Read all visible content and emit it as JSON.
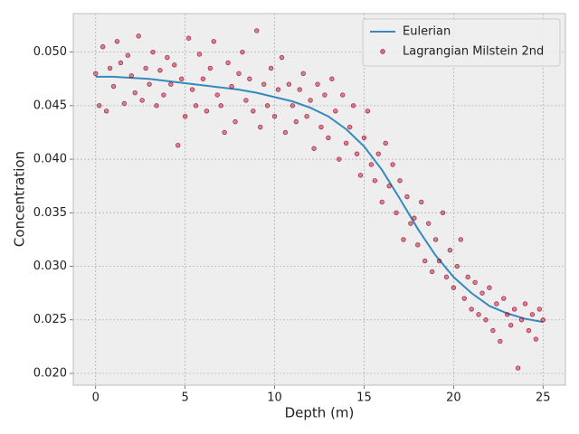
{
  "chart_data": {
    "type": "line",
    "xlabel": "Depth (m)",
    "ylabel": "Concentration",
    "xlim": [
      -1.25,
      26.25
    ],
    "ylim": [
      0.0189,
      0.0536
    ],
    "xticks": [
      0,
      5,
      10,
      15,
      20,
      25
    ],
    "yticks": [
      {
        "value": 0.02,
        "label": "0.020"
      },
      {
        "value": 0.025,
        "label": "0.025"
      },
      {
        "value": 0.03,
        "label": "0.030"
      },
      {
        "value": 0.035,
        "label": "0.035"
      },
      {
        "value": 0.04,
        "label": "0.040"
      },
      {
        "value": 0.045,
        "label": "0.045"
      },
      {
        "value": 0.05,
        "label": "0.050"
      }
    ],
    "grid": true,
    "legend": "upper right",
    "series": [
      {
        "name": "Eulerian",
        "type": "line",
        "color": "#348abd",
        "x": [
          0,
          1,
          2,
          3,
          4,
          5,
          6,
          7,
          8,
          9,
          10,
          11,
          12,
          13,
          14,
          15,
          16,
          17,
          18,
          19,
          20,
          21,
          22,
          23,
          24,
          25
        ],
        "values": [
          0.0477,
          0.0477,
          0.0476,
          0.0475,
          0.0473,
          0.0471,
          0.0469,
          0.0467,
          0.0465,
          0.0462,
          0.0458,
          0.0454,
          0.0448,
          0.044,
          0.0428,
          0.0412,
          0.039,
          0.0363,
          0.0335,
          0.031,
          0.029,
          0.0275,
          0.0263,
          0.0256,
          0.0251,
          0.0248
        ]
      },
      {
        "name": "Lagrangian Milstein 2nd",
        "type": "scatter",
        "color": "#a60628",
        "x": [
          0,
          0.2,
          0.4,
          0.6,
          0.8,
          1,
          1.2,
          1.4,
          1.6,
          1.8,
          2,
          2.2,
          2.4,
          2.6,
          2.8,
          3,
          3.2,
          3.4,
          3.6,
          3.8,
          4,
          4.2,
          4.4,
          4.6,
          4.8,
          5,
          5.2,
          5.4,
          5.6,
          5.8,
          6,
          6.2,
          6.4,
          6.6,
          6.8,
          7,
          7.2,
          7.4,
          7.6,
          7.8,
          8,
          8.2,
          8.4,
          8.6,
          8.8,
          9,
          9.2,
          9.4,
          9.6,
          9.8,
          10,
          10.2,
          10.4,
          10.6,
          10.8,
          11,
          11.2,
          11.4,
          11.6,
          11.8,
          12,
          12.2,
          12.4,
          12.6,
          12.8,
          13,
          13.2,
          13.4,
          13.6,
          13.8,
          14,
          14.2,
          14.4,
          14.6,
          14.8,
          15,
          15.2,
          15.4,
          15.6,
          15.8,
          16,
          16.2,
          16.4,
          16.6,
          16.8,
          17,
          17.2,
          17.4,
          17.6,
          17.8,
          18,
          18.2,
          18.4,
          18.6,
          18.8,
          19,
          19.2,
          19.4,
          19.6,
          19.8,
          20,
          20.2,
          20.4,
          20.6,
          20.8,
          21,
          21.2,
          21.4,
          21.6,
          21.8,
          22,
          22.2,
          22.4,
          22.6,
          22.8,
          23,
          23.2,
          23.4,
          23.6,
          23.8,
          24,
          24.2,
          24.4,
          24.6,
          24.8,
          25
        ],
        "values": [
          0.048,
          0.045,
          0.0505,
          0.0445,
          0.0485,
          0.0468,
          0.051,
          0.049,
          0.0452,
          0.0497,
          0.0478,
          0.0462,
          0.0515,
          0.0455,
          0.0485,
          0.047,
          0.05,
          0.045,
          0.0483,
          0.046,
          0.0495,
          0.047,
          0.0488,
          0.0413,
          0.0475,
          0.044,
          0.0513,
          0.0465,
          0.045,
          0.0498,
          0.0475,
          0.0445,
          0.0485,
          0.051,
          0.046,
          0.045,
          0.0425,
          0.049,
          0.0468,
          0.0435,
          0.048,
          0.05,
          0.0455,
          0.0475,
          0.0445,
          0.052,
          0.043,
          0.047,
          0.045,
          0.0485,
          0.044,
          0.0465,
          0.0495,
          0.0425,
          0.047,
          0.045,
          0.0435,
          0.0465,
          0.048,
          0.044,
          0.0455,
          0.041,
          0.047,
          0.043,
          0.046,
          0.042,
          0.0475,
          0.0445,
          0.04,
          0.046,
          0.0415,
          0.043,
          0.045,
          0.0405,
          0.0385,
          0.042,
          0.0445,
          0.0395,
          0.038,
          0.0405,
          0.036,
          0.0415,
          0.0375,
          0.0395,
          0.035,
          0.038,
          0.0325,
          0.0365,
          0.034,
          0.0345,
          0.032,
          0.036,
          0.0305,
          0.034,
          0.0295,
          0.0325,
          0.0305,
          0.035,
          0.029,
          0.0315,
          0.028,
          0.03,
          0.0325,
          0.027,
          0.029,
          0.026,
          0.0285,
          0.0255,
          0.0275,
          0.025,
          0.028,
          0.024,
          0.0265,
          0.023,
          0.027,
          0.0255,
          0.0245,
          0.026,
          0.0205,
          0.025,
          0.0265,
          0.024,
          0.0255,
          0.0232,
          0.026,
          0.025
        ]
      }
    ]
  }
}
